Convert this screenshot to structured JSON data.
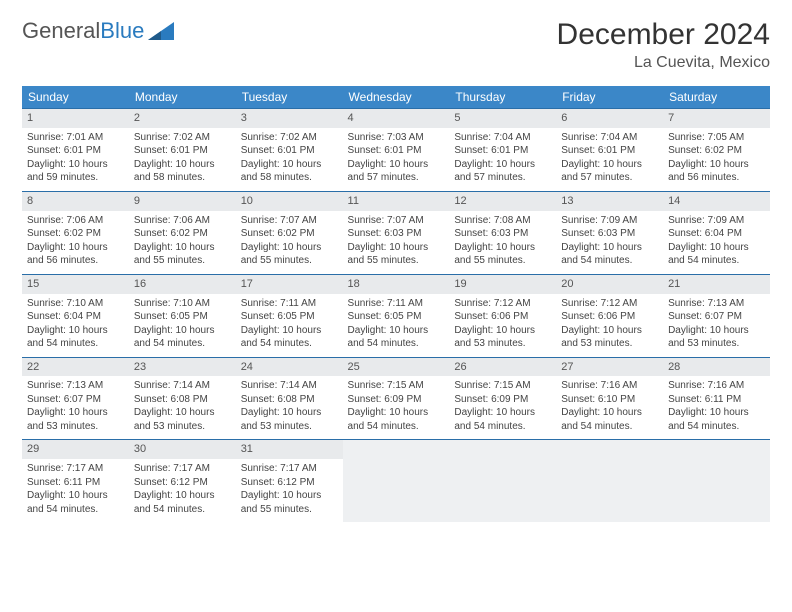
{
  "logo": {
    "text1": "General",
    "text2": "Blue"
  },
  "title": "December 2024",
  "location": "La Cuevita, Mexico",
  "colors": {
    "header_bg": "#3b87c8",
    "header_text": "#ffffff",
    "row_border": "#2a6ea8",
    "daynum_bg": "#e8eaec",
    "empty_bg": "#eef0f2",
    "logo_blue": "#2a7bbf"
  },
  "weekdays": [
    "Sunday",
    "Monday",
    "Tuesday",
    "Wednesday",
    "Thursday",
    "Friday",
    "Saturday"
  ],
  "weeks": [
    [
      {
        "n": "1",
        "sr": "Sunrise: 7:01 AM",
        "ss": "Sunset: 6:01 PM",
        "d1": "Daylight: 10 hours",
        "d2": "and 59 minutes."
      },
      {
        "n": "2",
        "sr": "Sunrise: 7:02 AM",
        "ss": "Sunset: 6:01 PM",
        "d1": "Daylight: 10 hours",
        "d2": "and 58 minutes."
      },
      {
        "n": "3",
        "sr": "Sunrise: 7:02 AM",
        "ss": "Sunset: 6:01 PM",
        "d1": "Daylight: 10 hours",
        "d2": "and 58 minutes."
      },
      {
        "n": "4",
        "sr": "Sunrise: 7:03 AM",
        "ss": "Sunset: 6:01 PM",
        "d1": "Daylight: 10 hours",
        "d2": "and 57 minutes."
      },
      {
        "n": "5",
        "sr": "Sunrise: 7:04 AM",
        "ss": "Sunset: 6:01 PM",
        "d1": "Daylight: 10 hours",
        "d2": "and 57 minutes."
      },
      {
        "n": "6",
        "sr": "Sunrise: 7:04 AM",
        "ss": "Sunset: 6:01 PM",
        "d1": "Daylight: 10 hours",
        "d2": "and 57 minutes."
      },
      {
        "n": "7",
        "sr": "Sunrise: 7:05 AM",
        "ss": "Sunset: 6:02 PM",
        "d1": "Daylight: 10 hours",
        "d2": "and 56 minutes."
      }
    ],
    [
      {
        "n": "8",
        "sr": "Sunrise: 7:06 AM",
        "ss": "Sunset: 6:02 PM",
        "d1": "Daylight: 10 hours",
        "d2": "and 56 minutes."
      },
      {
        "n": "9",
        "sr": "Sunrise: 7:06 AM",
        "ss": "Sunset: 6:02 PM",
        "d1": "Daylight: 10 hours",
        "d2": "and 55 minutes."
      },
      {
        "n": "10",
        "sr": "Sunrise: 7:07 AM",
        "ss": "Sunset: 6:02 PM",
        "d1": "Daylight: 10 hours",
        "d2": "and 55 minutes."
      },
      {
        "n": "11",
        "sr": "Sunrise: 7:07 AM",
        "ss": "Sunset: 6:03 PM",
        "d1": "Daylight: 10 hours",
        "d2": "and 55 minutes."
      },
      {
        "n": "12",
        "sr": "Sunrise: 7:08 AM",
        "ss": "Sunset: 6:03 PM",
        "d1": "Daylight: 10 hours",
        "d2": "and 55 minutes."
      },
      {
        "n": "13",
        "sr": "Sunrise: 7:09 AM",
        "ss": "Sunset: 6:03 PM",
        "d1": "Daylight: 10 hours",
        "d2": "and 54 minutes."
      },
      {
        "n": "14",
        "sr": "Sunrise: 7:09 AM",
        "ss": "Sunset: 6:04 PM",
        "d1": "Daylight: 10 hours",
        "d2": "and 54 minutes."
      }
    ],
    [
      {
        "n": "15",
        "sr": "Sunrise: 7:10 AM",
        "ss": "Sunset: 6:04 PM",
        "d1": "Daylight: 10 hours",
        "d2": "and 54 minutes."
      },
      {
        "n": "16",
        "sr": "Sunrise: 7:10 AM",
        "ss": "Sunset: 6:05 PM",
        "d1": "Daylight: 10 hours",
        "d2": "and 54 minutes."
      },
      {
        "n": "17",
        "sr": "Sunrise: 7:11 AM",
        "ss": "Sunset: 6:05 PM",
        "d1": "Daylight: 10 hours",
        "d2": "and 54 minutes."
      },
      {
        "n": "18",
        "sr": "Sunrise: 7:11 AM",
        "ss": "Sunset: 6:05 PM",
        "d1": "Daylight: 10 hours",
        "d2": "and 54 minutes."
      },
      {
        "n": "19",
        "sr": "Sunrise: 7:12 AM",
        "ss": "Sunset: 6:06 PM",
        "d1": "Daylight: 10 hours",
        "d2": "and 53 minutes."
      },
      {
        "n": "20",
        "sr": "Sunrise: 7:12 AM",
        "ss": "Sunset: 6:06 PM",
        "d1": "Daylight: 10 hours",
        "d2": "and 53 minutes."
      },
      {
        "n": "21",
        "sr": "Sunrise: 7:13 AM",
        "ss": "Sunset: 6:07 PM",
        "d1": "Daylight: 10 hours",
        "d2": "and 53 minutes."
      }
    ],
    [
      {
        "n": "22",
        "sr": "Sunrise: 7:13 AM",
        "ss": "Sunset: 6:07 PM",
        "d1": "Daylight: 10 hours",
        "d2": "and 53 minutes."
      },
      {
        "n": "23",
        "sr": "Sunrise: 7:14 AM",
        "ss": "Sunset: 6:08 PM",
        "d1": "Daylight: 10 hours",
        "d2": "and 53 minutes."
      },
      {
        "n": "24",
        "sr": "Sunrise: 7:14 AM",
        "ss": "Sunset: 6:08 PM",
        "d1": "Daylight: 10 hours",
        "d2": "and 53 minutes."
      },
      {
        "n": "25",
        "sr": "Sunrise: 7:15 AM",
        "ss": "Sunset: 6:09 PM",
        "d1": "Daylight: 10 hours",
        "d2": "and 54 minutes."
      },
      {
        "n": "26",
        "sr": "Sunrise: 7:15 AM",
        "ss": "Sunset: 6:09 PM",
        "d1": "Daylight: 10 hours",
        "d2": "and 54 minutes."
      },
      {
        "n": "27",
        "sr": "Sunrise: 7:16 AM",
        "ss": "Sunset: 6:10 PM",
        "d1": "Daylight: 10 hours",
        "d2": "and 54 minutes."
      },
      {
        "n": "28",
        "sr": "Sunrise: 7:16 AM",
        "ss": "Sunset: 6:11 PM",
        "d1": "Daylight: 10 hours",
        "d2": "and 54 minutes."
      }
    ],
    [
      {
        "n": "29",
        "sr": "Sunrise: 7:17 AM",
        "ss": "Sunset: 6:11 PM",
        "d1": "Daylight: 10 hours",
        "d2": "and 54 minutes."
      },
      {
        "n": "30",
        "sr": "Sunrise: 7:17 AM",
        "ss": "Sunset: 6:12 PM",
        "d1": "Daylight: 10 hours",
        "d2": "and 54 minutes."
      },
      {
        "n": "31",
        "sr": "Sunrise: 7:17 AM",
        "ss": "Sunset: 6:12 PM",
        "d1": "Daylight: 10 hours",
        "d2": "and 55 minutes."
      },
      null,
      null,
      null,
      null
    ]
  ]
}
